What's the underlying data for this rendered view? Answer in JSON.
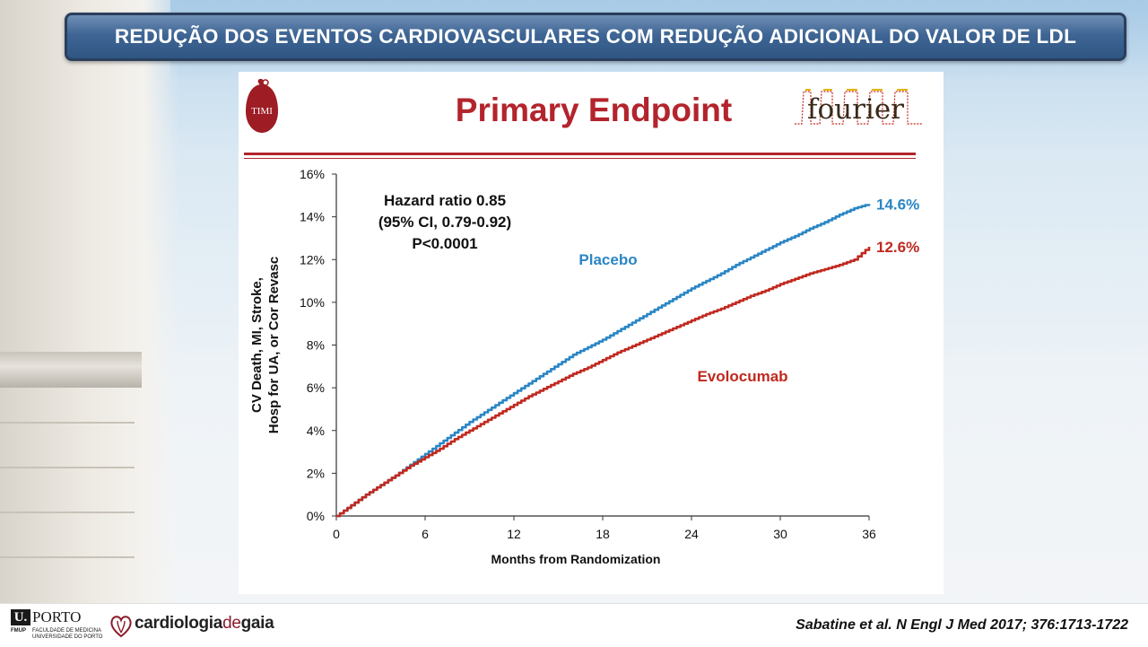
{
  "banner": {
    "title": "REDUÇÃO DOS EVENTOS CARDIOVASCULARES COM REDUÇÃO ADICIONAL DO VALOR DE LDL"
  },
  "slide": {
    "title": "Primary Endpoint",
    "logos": {
      "timi": "TIMI",
      "fourier": "fourier"
    }
  },
  "chart_data": {
    "type": "line",
    "title": "",
    "xlabel": "Months from Randomization",
    "ylabel_lines": [
      "CV Death, MI, Stroke,",
      "Hosp for UA, or Cor Revasc"
    ],
    "xlim": [
      0,
      36
    ],
    "ylim": [
      0,
      16
    ],
    "x_ticks": [
      0,
      6,
      12,
      18,
      24,
      30,
      36
    ],
    "y_ticks": [
      0,
      2,
      4,
      6,
      8,
      10,
      12,
      14,
      16
    ],
    "y_tick_labels": [
      "0%",
      "2%",
      "4%",
      "6%",
      "8%",
      "10%",
      "12%",
      "14%",
      "16%"
    ],
    "grid": false,
    "annotation_lines": [
      "Hazard ratio 0.85",
      "(95% CI, 0.79-0.92)",
      "P<0.0001"
    ],
    "series": [
      {
        "name": "Placebo",
        "color": "#2a86c4",
        "end_label": "14.6%",
        "x": [
          0,
          1,
          2,
          3,
          4,
          5,
          6,
          7,
          8,
          9,
          10,
          11,
          12,
          13,
          14,
          15,
          16,
          17,
          18,
          19,
          20,
          21,
          22,
          23,
          24,
          25,
          26,
          27,
          28,
          29,
          30,
          31,
          32,
          33,
          34,
          35,
          36
        ],
        "y": [
          0,
          0.5,
          1.0,
          1.45,
          1.9,
          2.4,
          2.9,
          3.4,
          3.9,
          4.4,
          4.85,
          5.3,
          5.75,
          6.2,
          6.65,
          7.1,
          7.55,
          7.9,
          8.25,
          8.65,
          9.05,
          9.45,
          9.85,
          10.25,
          10.65,
          11.0,
          11.35,
          11.75,
          12.1,
          12.45,
          12.8,
          13.1,
          13.45,
          13.75,
          14.1,
          14.4,
          14.6
        ]
      },
      {
        "name": "Evolocumab",
        "color": "#c0291f",
        "end_label": "12.6%",
        "x": [
          0,
          1,
          2,
          3,
          4,
          5,
          6,
          7,
          8,
          9,
          10,
          11,
          12,
          13,
          14,
          15,
          16,
          17,
          18,
          19,
          20,
          21,
          22,
          23,
          24,
          25,
          26,
          27,
          28,
          29,
          30,
          31,
          32,
          33,
          34,
          35,
          36
        ],
        "y": [
          0,
          0.5,
          1.0,
          1.45,
          1.9,
          2.35,
          2.75,
          3.15,
          3.6,
          4.0,
          4.4,
          4.8,
          5.2,
          5.6,
          5.95,
          6.3,
          6.65,
          6.95,
          7.3,
          7.65,
          7.95,
          8.25,
          8.55,
          8.85,
          9.15,
          9.45,
          9.7,
          10.0,
          10.3,
          10.55,
          10.85,
          11.1,
          11.35,
          11.55,
          11.75,
          12.0,
          12.6
        ]
      }
    ]
  },
  "footer": {
    "uporto_u": "U.",
    "uporto_name": "PORTO",
    "fmup": "FMUP",
    "faculty_line1": "FACULDADE DE MEDICINA",
    "faculty_line2": "UNIVERSIDADE DO PORTO",
    "cdg_part1": "cardiologia",
    "cdg_part2": "de",
    "cdg_part3": "gaia",
    "citation": "Sabatine et al. N Engl J Med 2017; 376:1713-1722"
  }
}
